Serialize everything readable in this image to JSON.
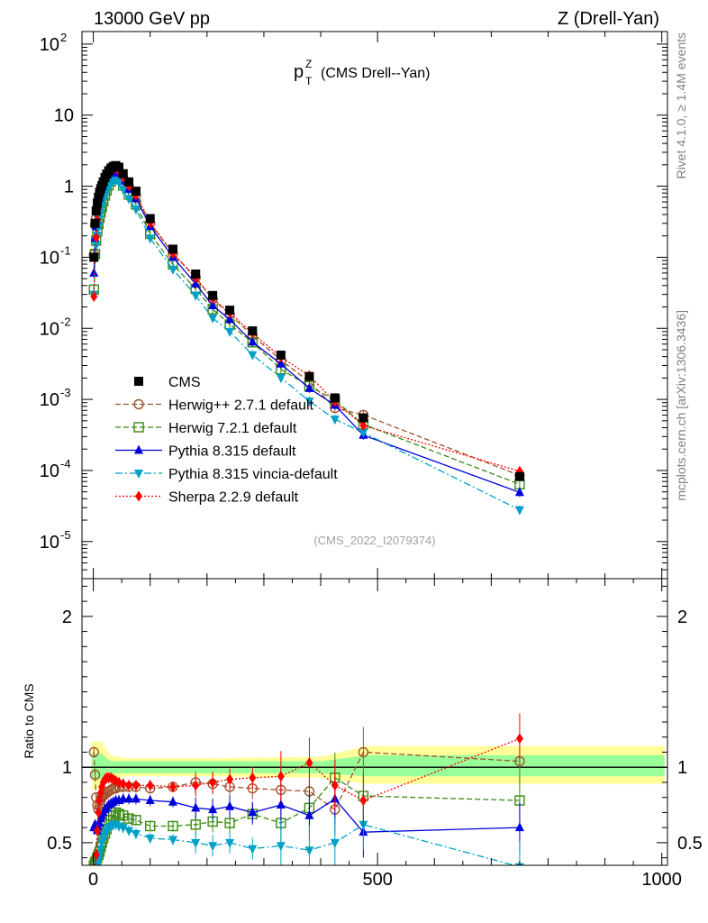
{
  "header": {
    "left": "13000 GeV pp",
    "right": "Z (Drell-Yan)"
  },
  "side": {
    "rivet": "Rivet 4.1.0, ≥ 1.4M events",
    "mcplots": "mcplots.cern.ch [arXiv:1306.3436]"
  },
  "plot": {
    "title_main": "p",
    "title_sup": "Z",
    "title_sub": "T",
    "title_rest": "(CMS Drell--Yan)",
    "analysis_id": "(CMS_2022_I2079374)",
    "ratio_ylabel": "Ratio to CMS"
  },
  "colors": {
    "cms": "#000000",
    "herwigpp": "#a0522d",
    "herwig7": "#3a8a12",
    "pythia": "#0000dd",
    "vincia": "#00a0c8",
    "sherpa": "#ff0000",
    "band_yellow": "#ffff99",
    "band_green": "#99ff99"
  },
  "chart_data": {
    "type": "line",
    "x_label": "",
    "x_range": [
      -20,
      1010
    ],
    "x_ticks": [
      "0",
      "500",
      "1000"
    ],
    "main": {
      "y_scale": "log",
      "y_range": [
        3e-06,
        150
      ],
      "y_ticks": [
        {
          "base": "10",
          "exp": "2",
          "v": 100
        },
        {
          "base": "10",
          "exp": "",
          "v": 10
        },
        {
          "base": "1",
          "exp": "",
          "v": 1
        },
        {
          "base": "10",
          "exp": "-1",
          "v": 0.1
        },
        {
          "base": "10",
          "exp": "-2",
          "v": 0.01
        },
        {
          "base": "10",
          "exp": "-3",
          "v": 0.001
        },
        {
          "base": "10",
          "exp": "-4",
          "v": 0.0001
        },
        {
          "base": "10",
          "exp": "-5",
          "v": 1e-05
        }
      ]
    },
    "ratio": {
      "y_range": [
        0.35,
        2.25
      ],
      "y_ticks": [
        {
          "label": "0.5",
          "v": 0.5
        },
        {
          "label": "1",
          "v": 1
        },
        {
          "label": "2",
          "v": 2
        }
      ]
    },
    "x": [
      1,
      3,
      5,
      7,
      9,
      11,
      13,
      15,
      17.5,
      20.5,
      23.5,
      27,
      31,
      35,
      39.5,
      45,
      52.5,
      62.5,
      75,
      100,
      140,
      180,
      210,
      240,
      280,
      330,
      380,
      425,
      475,
      750
    ],
    "cms": [
      0.1,
      0.3,
      0.45,
      0.58,
      0.7,
      0.82,
      0.92,
      1.02,
      1.15,
      1.32,
      1.48,
      1.65,
      1.8,
      1.9,
      1.95,
      1.85,
      1.5,
      1.15,
      0.85,
      0.35,
      0.13,
      0.058,
      0.029,
      0.018,
      0.0092,
      0.0042,
      0.0021,
      0.00105,
      0.00055,
      8.2e-05
    ],
    "legend": [
      {
        "key": "cms",
        "label": "CMS"
      },
      {
        "key": "herwigpp",
        "label": "Herwig++ 2.7.1 default"
      },
      {
        "key": "herwig7",
        "label": "Herwig 7.2.1 default"
      },
      {
        "key": "pythia",
        "label": "Pythia 8.315 default"
      },
      {
        "key": "vincia",
        "label": "Pythia 8.315 vincia-default"
      },
      {
        "key": "sherpa",
        "label": "Sherpa 2.2.9 default"
      }
    ],
    "series": [
      {
        "key": "herwigpp",
        "name": "Herwig++ 2.7.1 default",
        "marker": "circle-open",
        "dash": "6,3",
        "ratio": [
          1.1,
          0.95,
          0.8,
          0.75,
          0.72,
          0.75,
          0.78,
          0.8,
          0.81,
          0.82,
          0.83,
          0.84,
          0.85,
          0.86,
          0.86,
          0.87,
          0.87,
          0.87,
          0.87,
          0.86,
          0.87,
          0.9,
          0.89,
          0.87,
          0.86,
          0.85,
          0.84,
          0.72,
          1.1,
          1.04
        ]
      },
      {
        "key": "herwig7",
        "name": "Herwig 7.2.1 default",
        "marker": "square-open",
        "dash": "6,3",
        "ratio": [
          0.35,
          0.37,
          0.38,
          0.4,
          0.42,
          0.44,
          0.47,
          0.5,
          0.53,
          0.56,
          0.59,
          0.62,
          0.65,
          0.68,
          0.7,
          0.69,
          0.68,
          0.66,
          0.65,
          0.61,
          0.61,
          0.62,
          0.64,
          0.63,
          0.69,
          0.63,
          0.73,
          0.93,
          0.81,
          0.78
        ]
      },
      {
        "key": "pythia",
        "name": "Pythia 8.315 default",
        "marker": "triangle-up",
        "dash": "",
        "ratio": [
          0.6,
          0.62,
          0.6,
          0.58,
          0.6,
          0.63,
          0.66,
          0.68,
          0.7,
          0.72,
          0.73,
          0.75,
          0.76,
          0.77,
          0.78,
          0.78,
          0.79,
          0.79,
          0.79,
          0.78,
          0.77,
          0.73,
          0.72,
          0.74,
          0.7,
          0.75,
          0.68,
          0.79,
          0.57,
          0.6
        ]
      },
      {
        "key": "vincia",
        "name": "Pythia 8.315 vincia-default",
        "marker": "triangle-down",
        "dash": "8,3,2,3",
        "ratio": [
          0.3,
          0.32,
          0.33,
          0.35,
          0.38,
          0.42,
          0.46,
          0.5,
          0.53,
          0.56,
          0.58,
          0.6,
          0.61,
          0.62,
          0.62,
          0.61,
          0.6,
          0.58,
          0.56,
          0.53,
          0.52,
          0.5,
          0.48,
          0.5,
          0.46,
          0.48,
          0.45,
          0.5,
          0.62,
          0.34
        ]
      },
      {
        "key": "sherpa",
        "name": "Sherpa 2.2.9 default",
        "marker": "diamond",
        "dash": "2,2",
        "ratio": [
          0.28,
          0.33,
          0.42,
          0.58,
          0.7,
          0.78,
          0.83,
          0.87,
          0.9,
          0.92,
          0.93,
          0.93,
          0.93,
          0.92,
          0.91,
          0.9,
          0.89,
          0.88,
          0.88,
          0.88,
          0.87,
          0.88,
          0.9,
          0.92,
          0.93,
          0.94,
          1.03,
          0.88,
          0.78,
          1.19
        ]
      }
    ]
  }
}
